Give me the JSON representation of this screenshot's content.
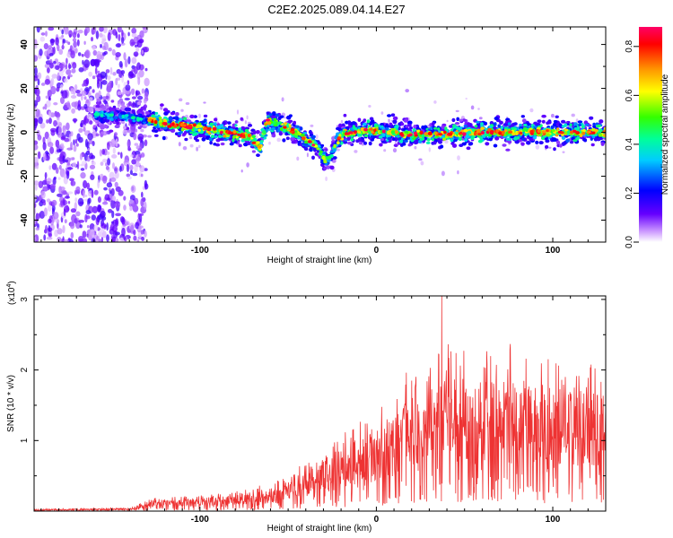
{
  "title": "C2E2.2025.089.04.14.E27",
  "chart_data": [
    {
      "type": "heatmap",
      "name": "spectrogram",
      "xlabel": "Height of straight line (km)",
      "ylabel": "Frequency (Hz)",
      "xlim": [
        -194,
        130
      ],
      "ylim": [
        -50,
        48
      ],
      "xticks": [
        -100,
        0,
        100
      ],
      "yticks": [
        -40,
        -20,
        0,
        20,
        40
      ],
      "colorbar": {
        "label": "Normalized spectral amplitude",
        "ticks": [
          0.0,
          0.2,
          0.4,
          0.6,
          0.8
        ],
        "range": [
          0.0,
          0.88
        ],
        "colors": [
          "#ffffff",
          "#cc99ff",
          "#6600ff",
          "#0000ff",
          "#00ccff",
          "#00ff99",
          "#33ff00",
          "#ffff00",
          "#ff9900",
          "#ff0000",
          "#ff0066"
        ]
      },
      "ridge": [
        {
          "x": -194,
          "f": 7
        },
        {
          "x": -160,
          "f": 8
        },
        {
          "x": -140,
          "f": 7
        },
        {
          "x": -120,
          "f": 4
        },
        {
          "x": -100,
          "f": 2
        },
        {
          "x": -85,
          "f": 0
        },
        {
          "x": -72,
          "f": -2
        },
        {
          "x": -66,
          "f": -7
        },
        {
          "x": -62,
          "f": 5
        },
        {
          "x": -50,
          "f": 2
        },
        {
          "x": -40,
          "f": -3
        },
        {
          "x": -33,
          "f": -7
        },
        {
          "x": -28,
          "f": -14
        },
        {
          "x": -20,
          "f": -1
        },
        {
          "x": -5,
          "f": 1
        },
        {
          "x": 20,
          "f": -1
        },
        {
          "x": 60,
          "f": 0
        },
        {
          "x": 100,
          "f": 0
        },
        {
          "x": 130,
          "f": 0
        }
      ]
    },
    {
      "type": "line",
      "name": "snr",
      "xlabel": "Height of straight line (km)",
      "ylabel": "SNR (10 * v/v)",
      "scale_label": "(x10",
      "scale_exp": "4",
      "scale_close": ")",
      "xlim": [
        -194,
        130
      ],
      "ylim": [
        0,
        3.05
      ],
      "xticks": [
        -100,
        0,
        100
      ],
      "yticks": [
        1,
        2,
        3
      ],
      "color": "#ee3333",
      "envelope": [
        {
          "x": -194,
          "y": 0.03
        },
        {
          "x": -140,
          "y": 0.05
        },
        {
          "x": -125,
          "y": 0.2
        },
        {
          "x": -100,
          "y": 0.22
        },
        {
          "x": -75,
          "y": 0.3
        },
        {
          "x": -55,
          "y": 0.45
        },
        {
          "x": -45,
          "y": 0.65
        },
        {
          "x": -30,
          "y": 0.95
        },
        {
          "x": -15,
          "y": 1.2
        },
        {
          "x": 0,
          "y": 1.5
        },
        {
          "x": 20,
          "y": 2.1
        },
        {
          "x": 40,
          "y": 2.4
        },
        {
          "x": 60,
          "y": 2.3
        },
        {
          "x": 80,
          "y": 2.4
        },
        {
          "x": 100,
          "y": 2.2
        },
        {
          "x": 130,
          "y": 2.1
        }
      ],
      "peak": {
        "x": 37,
        "y": 3.05
      }
    }
  ]
}
